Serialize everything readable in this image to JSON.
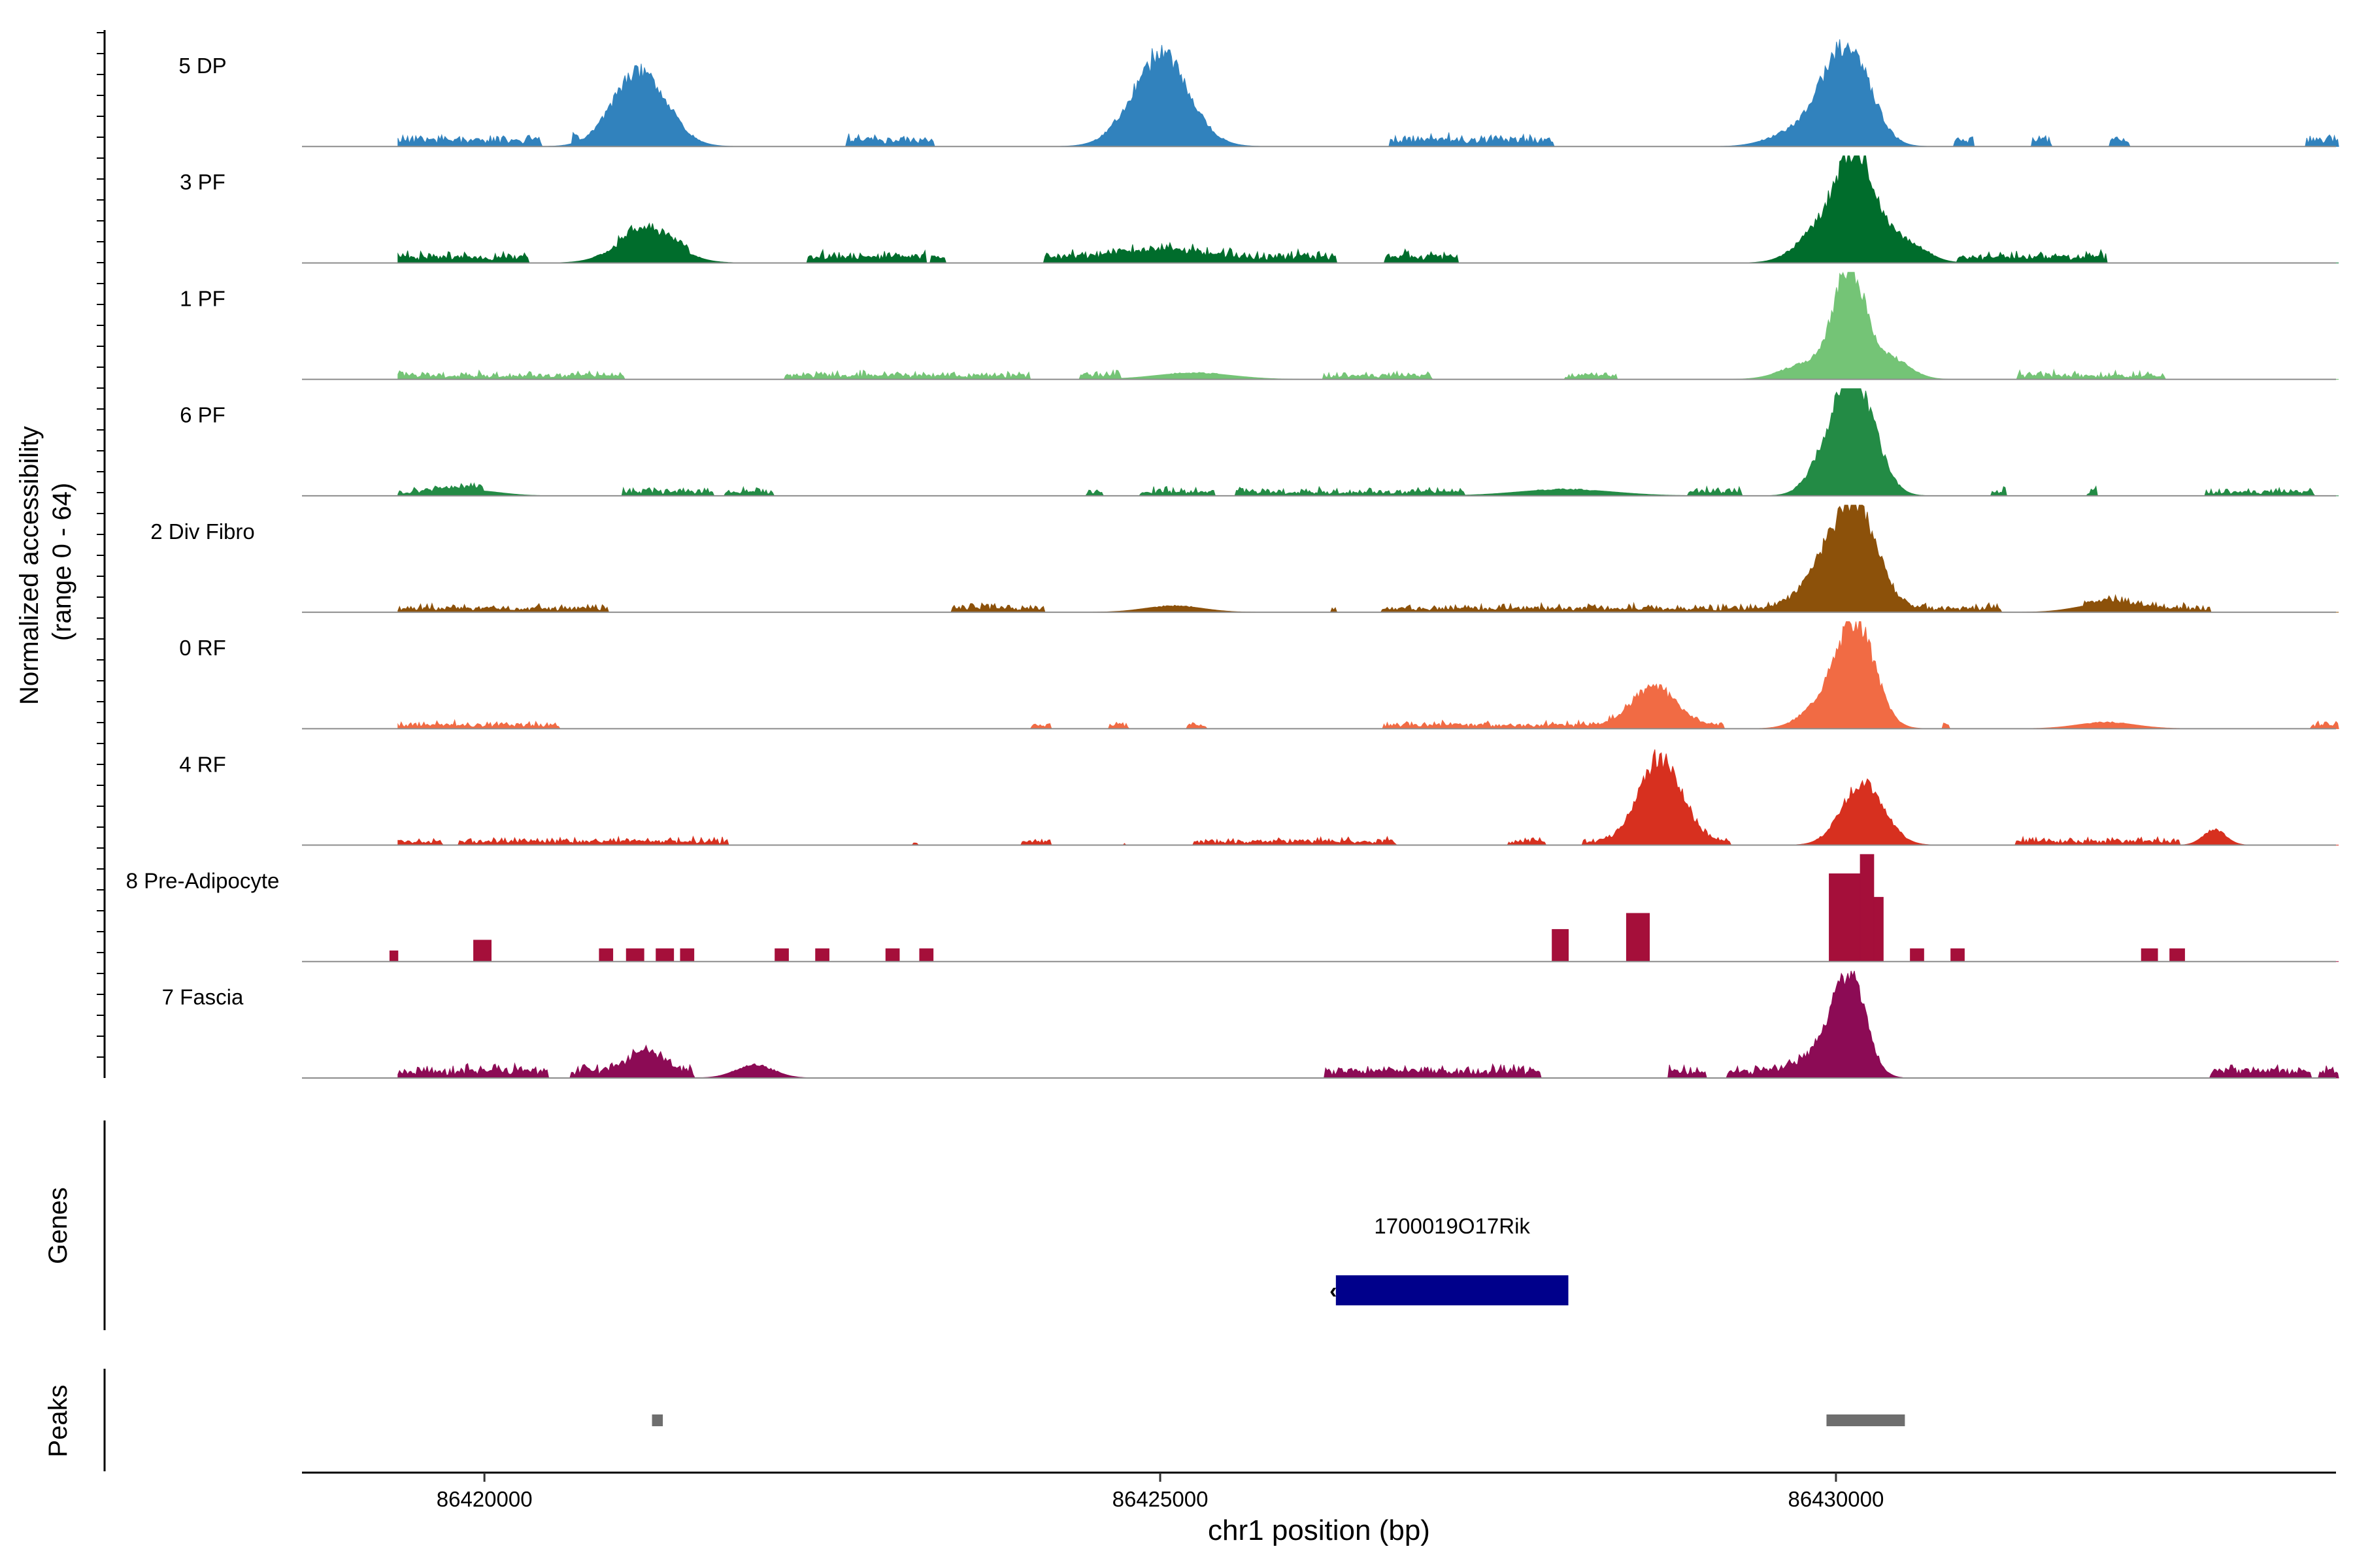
{
  "chart_data": {
    "type": "area",
    "title": "",
    "ylabel": "Normalized accessibility\n(range 0 - 64)",
    "ylabel_lines": [
      "Normalized accessibility",
      "(range 0 - 64)"
    ],
    "xlabel": "chr1 position (bp)",
    "xlim": [
      86418650,
      86433700
    ],
    "ylim": [
      0,
      64
    ],
    "x_ticks": [
      86420000,
      86425000,
      86430000
    ],
    "x_tick_labels": [
      "86420000",
      "86425000",
      "86430000"
    ],
    "track_range": [
      86419360,
      86433720
    ],
    "series": [
      {
        "name": "5 DP",
        "color": "#3182bd",
        "peaks": [
          [
            86421150,
            0.7,
            280
          ],
          [
            86425000,
            0.8,
            300
          ],
          [
            86430100,
            0.85,
            230
          ],
          [
            86429900,
            0.2,
            220
          ],
          [
            86429650,
            0.1,
            250
          ]
        ],
        "baseline": 0.06,
        "noise": 0.05,
        "seed": 11
      },
      {
        "name": "3 PF",
        "color": "#006d2c",
        "peaks": [
          [
            86421200,
            0.28,
            300
          ],
          [
            86430150,
            0.92,
            200
          ],
          [
            86429900,
            0.3,
            250
          ],
          [
            86430500,
            0.2,
            220
          ],
          [
            86425000,
            0.08,
            400
          ]
        ],
        "baseline": 0.05,
        "noise": 0.06,
        "seed": 23
      },
      {
        "name": "1 PF",
        "color": "#74c476",
        "peaks": [
          [
            86430100,
            1.0,
            160
          ],
          [
            86429800,
            0.15,
            260
          ],
          [
            86430400,
            0.2,
            200
          ],
          [
            86425250,
            0.06,
            400
          ]
        ],
        "baseline": 0.03,
        "noise": 0.05,
        "seed": 37
      },
      {
        "name": "6 PF",
        "color": "#238b45",
        "peaks": [
          [
            86430150,
            1.0,
            210
          ],
          [
            86429950,
            0.3,
            200
          ],
          [
            86428000,
            0.06,
            500
          ],
          [
            86419900,
            0.05,
            300
          ]
        ],
        "baseline": 0.03,
        "noise": 0.05,
        "seed": 53
      },
      {
        "name": "2 Div Fibro",
        "color": "#8c510a",
        "peaks": [
          [
            86430150,
            0.92,
            220
          ],
          [
            86429900,
            0.3,
            230
          ],
          [
            86432000,
            0.08,
            300
          ],
          [
            86425100,
            0.06,
            300
          ]
        ],
        "baseline": 0.03,
        "noise": 0.05,
        "seed": 71
      },
      {
        "name": "0 RF",
        "color": "#f16b44",
        "peaks": [
          [
            86428650,
            0.36,
            230
          ],
          [
            86430150,
            0.95,
            200
          ],
          [
            86429900,
            0.2,
            220
          ],
          [
            86432000,
            0.06,
            300
          ]
        ],
        "baseline": 0.03,
        "noise": 0.04,
        "seed": 89
      },
      {
        "name": "4 RF",
        "color": "#d7301f",
        "peaks": [
          [
            86428700,
            0.78,
            220
          ],
          [
            86430200,
            0.58,
            220
          ],
          [
            86432800,
            0.14,
            120
          ]
        ],
        "baseline": 0.03,
        "noise": 0.04,
        "seed": 97
      },
      {
        "name": "8 Pre-Adipocyte",
        "color": "#a50f3a",
        "blocks": [
          [
            86419300,
            86419360,
            0.1
          ],
          [
            86419920,
            86420050,
            0.2
          ],
          [
            86420850,
            86420950,
            0.12
          ],
          [
            86421050,
            86421180,
            0.12
          ],
          [
            86421270,
            86421400,
            0.12
          ],
          [
            86421450,
            86421550,
            0.12
          ],
          [
            86422150,
            86422250,
            0.12
          ],
          [
            86422450,
            86422550,
            0.12
          ],
          [
            86422970,
            86423070,
            0.12
          ],
          [
            86423220,
            86423320,
            0.12
          ],
          [
            86427900,
            86428020,
            0.3
          ],
          [
            86428450,
            86428620,
            0.45
          ],
          [
            86429950,
            86430180,
            0.82
          ],
          [
            86430180,
            86430280,
            1.0
          ],
          [
            86430280,
            86430350,
            0.6
          ],
          [
            86430550,
            86430650,
            0.12
          ],
          [
            86430850,
            86430950,
            0.12
          ],
          [
            86432260,
            86432380,
            0.12
          ],
          [
            86432470,
            86432580,
            0.12
          ]
        ],
        "peaks": [],
        "baseline": 0.0,
        "noise": 0.0,
        "seed": 3
      },
      {
        "name": "7 Fascia",
        "color": "#8c0b55",
        "peaks": [
          [
            86430100,
            0.95,
            170
          ],
          [
            86429850,
            0.15,
            200
          ],
          [
            86421200,
            0.18,
            180
          ],
          [
            86422000,
            0.12,
            200
          ]
        ],
        "baseline": 0.06,
        "noise": 0.06,
        "seed": 113
      }
    ],
    "genes_label": "Genes",
    "gene": {
      "name": "1700019O17Rik",
      "start": 86426300,
      "end": 86428020,
      "strand": "-",
      "color": "#00008b"
    },
    "peaks_label": "Peaks",
    "peak_regions": [
      [
        86421240,
        86421320
      ],
      [
        86429930,
        86430510
      ]
    ],
    "peak_color": "#6e6e6e"
  }
}
